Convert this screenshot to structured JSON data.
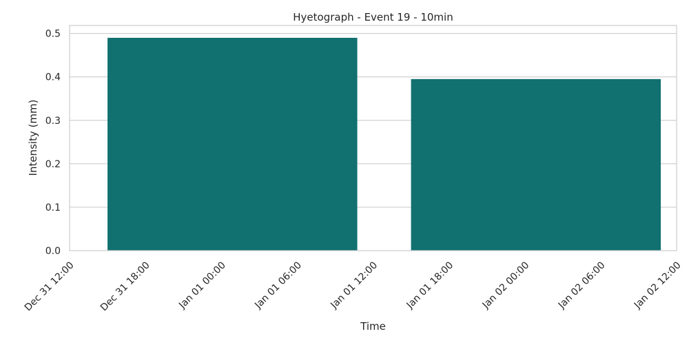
{
  "chart_data": {
    "type": "bar",
    "title": "Hyetograph - Event 19 - 10min",
    "xlabel": "Time",
    "ylabel": "Intensity (mm)",
    "ylim": [
      0,
      0.5184
    ],
    "yticks": [
      0.0,
      0.1,
      0.2,
      0.3,
      0.4,
      0.5
    ],
    "xlim": [
      "Dec 31 12:00",
      "Jan 02 12:00"
    ],
    "xticks": [
      "Dec 31 12:00",
      "Dec 31 18:00",
      "Jan 01 00:00",
      "Jan 01 06:00",
      "Jan 01 12:00",
      "Jan 01 18:00",
      "Jan 02 00:00",
      "Jan 02 06:00",
      "Jan 02 12:00"
    ],
    "bars": [
      {
        "start": "Dec 31 15:00",
        "end": "Jan 01 10:45",
        "value": 0.49
      },
      {
        "start": "Jan 01 15:00",
        "end": "Jan 02 10:45",
        "value": 0.395
      }
    ],
    "grid": true,
    "bar_color": "#117070",
    "grid_color": "#cccccc"
  }
}
